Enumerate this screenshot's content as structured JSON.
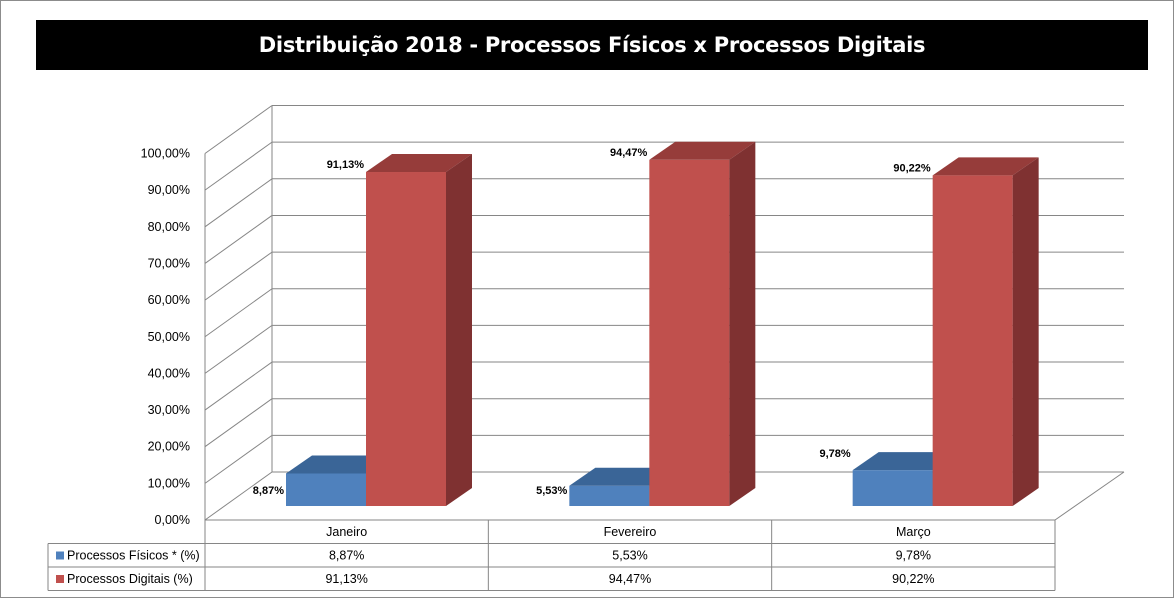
{
  "chart_data": {
    "type": "bar",
    "title": "Distribuição 2018 - Processos Físicos x Processos Digitais",
    "categories": [
      "Janeiro",
      "Fevereiro",
      "Março"
    ],
    "series": [
      {
        "name": "Processos Físicos * (%)",
        "values": [
          8.87,
          5.53,
          9.78
        ],
        "labels": [
          "8,87%",
          "5,53%",
          "9,78%"
        ],
        "color": "#4f81bd"
      },
      {
        "name": "Processos Digitais (%)",
        "values": [
          91.13,
          94.47,
          90.22
        ],
        "labels": [
          "91,13%",
          "94,47%",
          "90,22%"
        ],
        "color": "#c0504d"
      }
    ],
    "yticks": [
      "0,00%",
      "10,00%",
      "20,00%",
      "30,00%",
      "40,00%",
      "50,00%",
      "60,00%",
      "70,00%",
      "80,00%",
      "90,00%",
      "100,00%"
    ],
    "ylim": [
      0,
      100
    ],
    "grid": true,
    "three_d": true,
    "legend": "data-table"
  }
}
